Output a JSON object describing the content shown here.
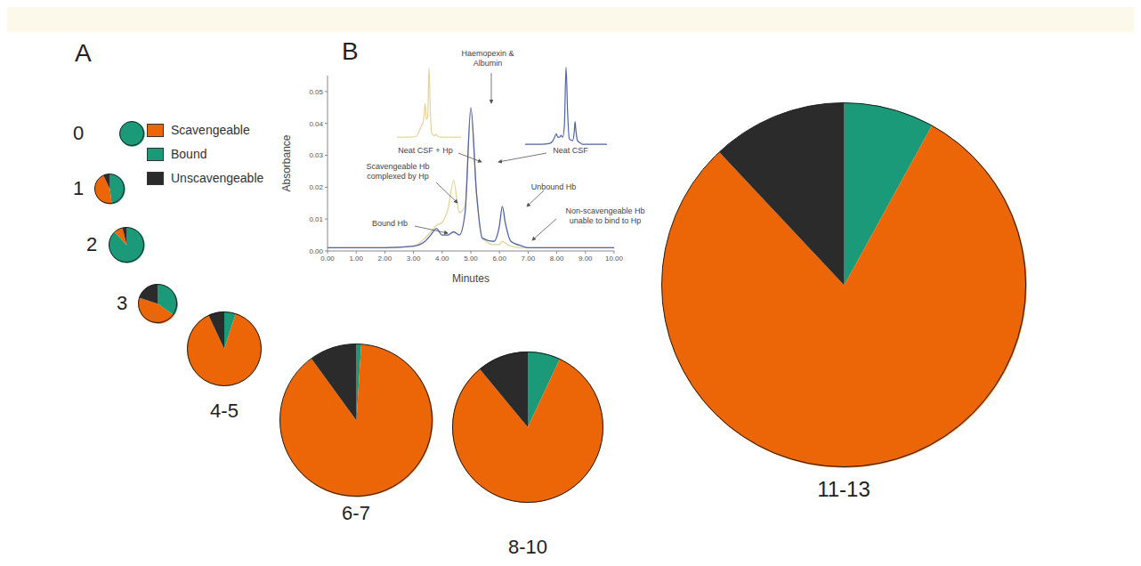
{
  "chart_data": [
    {
      "type": "pie",
      "title": "A",
      "categories": [
        "Scavengeable",
        "Bound",
        "Unscavengeable"
      ],
      "colors": [
        "#ec6608",
        "#1a9a78",
        "#2b2b2b"
      ],
      "legend": "top left",
      "pies": [
        {
          "label": "0",
          "size": 0.9,
          "values": [
            0,
            100,
            0
          ]
        },
        {
          "label": "1",
          "size": 1.3,
          "values": [
            45,
            48,
            7
          ]
        },
        {
          "label": "2",
          "size": 1.8,
          "values": [
            8,
            88,
            4
          ]
        },
        {
          "label": "3",
          "size": 2.2,
          "values": [
            45,
            35,
            20
          ]
        },
        {
          "label": "4-5",
          "size": 7.8,
          "values": [
            88,
            5,
            7
          ]
        },
        {
          "label": "6-7",
          "size": 32.9,
          "values": [
            89,
            1,
            10
          ]
        },
        {
          "label": "8-10",
          "size": 32.1,
          "values": [
            82,
            7,
            11
          ]
        },
        {
          "label": "11-13",
          "size": 186.8,
          "values": [
            80,
            8,
            12
          ]
        }
      ]
    },
    {
      "type": "line",
      "title": "B",
      "x_label": "Minutes",
      "y_label": "Absorbance",
      "x": [
        0,
        1,
        2,
        3,
        3.4,
        3.6,
        3.8,
        4,
        4.2,
        4.4,
        4.6,
        4.8,
        5,
        5.2,
        5.4,
        5.8,
        6,
        6.1,
        6.2,
        6.4,
        6.8,
        7,
        8,
        9,
        10
      ],
      "series": [
        {
          "name": "Neat CSF + Hp",
          "color": "#e3d49a",
          "values": [
            0.001,
            0.001,
            0.001,
            0.0015,
            0.004,
            0.006,
            0.008,
            0.009,
            0.013,
            0.022,
            0.012,
            0.014,
            0.044,
            0.018,
            0.004,
            0.002,
            0.002,
            0.003,
            0.0025,
            0.0015,
            0.001,
            0.001,
            0.001,
            0.001,
            0.001
          ]
        },
        {
          "name": "Neat CSF",
          "color": "#4f63a8",
          "values": [
            0.001,
            0.001,
            0.001,
            0.0015,
            0.003,
            0.005,
            0.007,
            0.005,
            0.005,
            0.006,
            0.005,
            0.012,
            0.045,
            0.018,
            0.004,
            0.003,
            0.008,
            0.014,
            0.009,
            0.003,
            0.0015,
            0.001,
            0.001,
            0.001,
            0.001
          ]
        }
      ],
      "xlim": [
        0,
        10
      ],
      "ylim": [
        0,
        0.055
      ],
      "xticks": [
        {
          "value": 0,
          "label": "0.00"
        },
        {
          "value": 1,
          "label": "1.00"
        },
        {
          "value": 2,
          "label": "2.00"
        },
        {
          "value": 3,
          "label": "3.00"
        },
        {
          "value": 4,
          "label": "4.00"
        },
        {
          "value": 5,
          "label": "5.00"
        },
        {
          "value": 6,
          "label": "6.00"
        },
        {
          "value": 7,
          "label": "7.00"
        },
        {
          "value": 8,
          "label": "8.00"
        },
        {
          "value": 9,
          "label": "9.00"
        },
        {
          "value": 10,
          "label": "10.00"
        }
      ],
      "yticks": [
        {
          "value": 0,
          "label": "0.00"
        },
        0.01,
        0.02,
        0.03,
        0.04,
        0.05
      ],
      "annotations": [
        "Haemopexin & Albumin",
        "Scavengeable Hb complexed by Hp",
        "Bound Hb",
        "Unbound Hb",
        "Non-scavengeable Hb unable to bind to Hp"
      ]
    }
  ]
}
